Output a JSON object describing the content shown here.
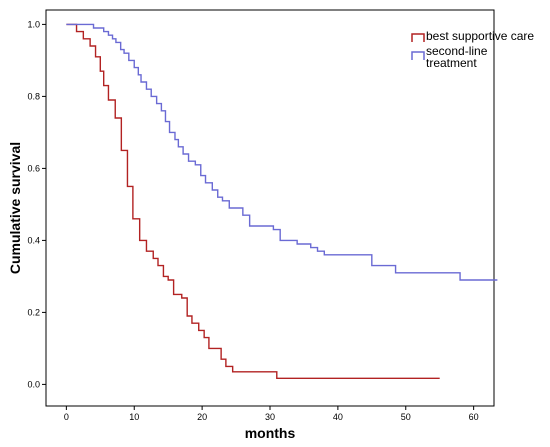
{
  "chart_data": {
    "type": "line",
    "style": "step",
    "xlabel": "months",
    "ylabel": "Cumulative survival",
    "xlim": [
      -3,
      63
    ],
    "ylim": [
      -0.06,
      1.04
    ],
    "x_ticks": [
      0,
      10,
      20,
      30,
      40,
      50,
      60
    ],
    "y_ticks": [
      0.0,
      0.2,
      0.4,
      0.6,
      0.8,
      1.0
    ],
    "y_tick_labels": [
      "0.0",
      "0.2",
      "0.4",
      "0.6",
      "0.8",
      "1.0"
    ],
    "grid": false,
    "legend_position": "top-right",
    "series": [
      {
        "name": "best supportive care",
        "color": "#b22222",
        "points": [
          [
            0,
            1.0
          ],
          [
            1.5,
            0.98
          ],
          [
            2.5,
            0.96
          ],
          [
            3.5,
            0.94
          ],
          [
            4.3,
            0.91
          ],
          [
            5.0,
            0.87
          ],
          [
            5.5,
            0.83
          ],
          [
            6.2,
            0.79
          ],
          [
            7.2,
            0.74
          ],
          [
            8.1,
            0.65
          ],
          [
            9.0,
            0.55
          ],
          [
            9.8,
            0.46
          ],
          [
            10.8,
            0.4
          ],
          [
            11.8,
            0.37
          ],
          [
            12.8,
            0.35
          ],
          [
            13.5,
            0.33
          ],
          [
            14.3,
            0.3
          ],
          [
            15.0,
            0.29
          ],
          [
            15.8,
            0.25
          ],
          [
            17.0,
            0.24
          ],
          [
            17.8,
            0.19
          ],
          [
            18.5,
            0.17
          ],
          [
            19.5,
            0.15
          ],
          [
            20.3,
            0.13
          ],
          [
            21.0,
            0.1
          ],
          [
            22.8,
            0.07
          ],
          [
            23.5,
            0.05
          ],
          [
            24.5,
            0.035
          ],
          [
            31.0,
            0.017
          ],
          [
            55.0,
            0.017
          ]
        ]
      },
      {
        "name": "second-line treatment",
        "color": "#6a6ad4",
        "points": [
          [
            0,
            1.0
          ],
          [
            4.0,
            0.99
          ],
          [
            5.5,
            0.98
          ],
          [
            6.2,
            0.97
          ],
          [
            6.8,
            0.96
          ],
          [
            7.3,
            0.95
          ],
          [
            8.0,
            0.93
          ],
          [
            8.5,
            0.92
          ],
          [
            9.2,
            0.9
          ],
          [
            10.0,
            0.88
          ],
          [
            10.6,
            0.86
          ],
          [
            11.0,
            0.84
          ],
          [
            11.8,
            0.82
          ],
          [
            12.5,
            0.8
          ],
          [
            13.3,
            0.78
          ],
          [
            14.0,
            0.76
          ],
          [
            14.6,
            0.73
          ],
          [
            15.2,
            0.7
          ],
          [
            16.0,
            0.68
          ],
          [
            16.5,
            0.66
          ],
          [
            17.2,
            0.64
          ],
          [
            18.0,
            0.62
          ],
          [
            19.0,
            0.61
          ],
          [
            19.8,
            0.58
          ],
          [
            20.5,
            0.56
          ],
          [
            21.5,
            0.54
          ],
          [
            22.3,
            0.52
          ],
          [
            23.0,
            0.51
          ],
          [
            24.0,
            0.49
          ],
          [
            26.0,
            0.47
          ],
          [
            27.0,
            0.44
          ],
          [
            30.5,
            0.43
          ],
          [
            31.5,
            0.4
          ],
          [
            34.0,
            0.39
          ],
          [
            36.0,
            0.38
          ],
          [
            37.0,
            0.37
          ],
          [
            38.0,
            0.36
          ],
          [
            45.0,
            0.33
          ],
          [
            48.5,
            0.31
          ],
          [
            58.0,
            0.29
          ],
          [
            63.5,
            0.29
          ]
        ]
      }
    ]
  }
}
